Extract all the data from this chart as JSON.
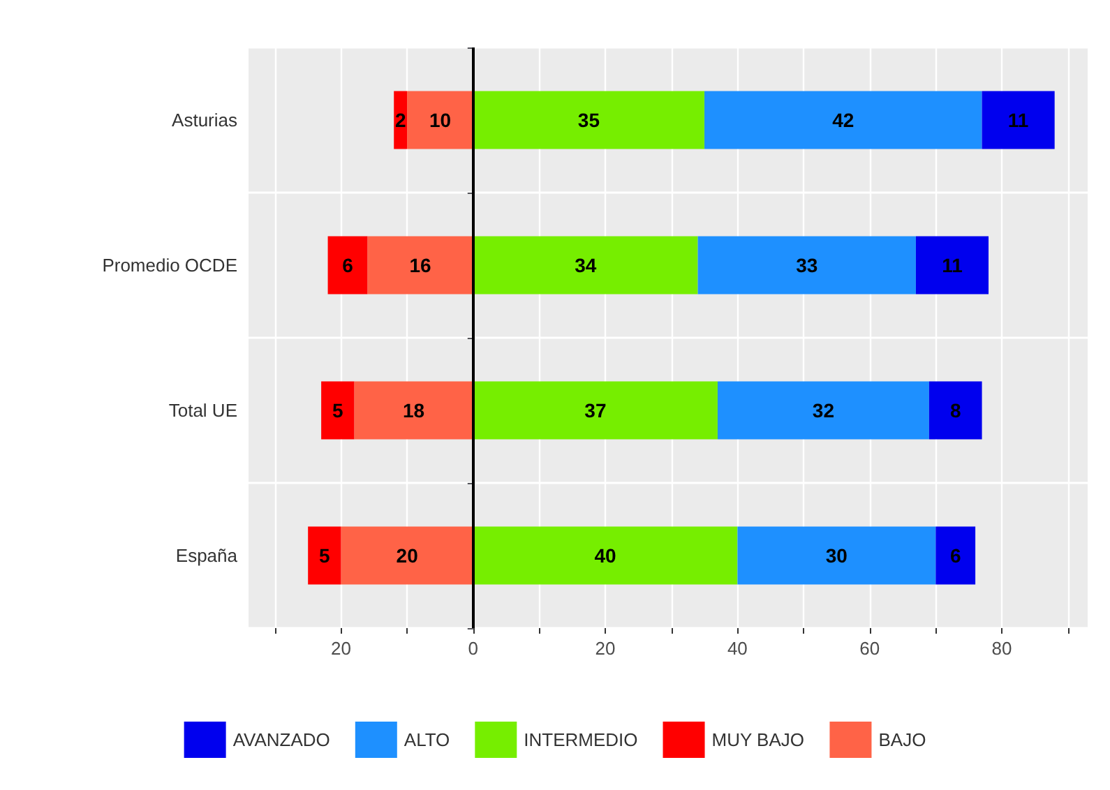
{
  "chart_data": {
    "type": "bar",
    "orientation": "horizontal",
    "categories": [
      "Asturias",
      "Promedio OCDE",
      "Total UE",
      "España"
    ],
    "series": [
      {
        "name": "BAJO",
        "color": "#ff6347",
        "values": [
          10,
          16,
          18,
          20
        ],
        "base": [
          -10,
          -16,
          -18,
          -20
        ]
      },
      {
        "name": "MUY BAJO",
        "color": "#ff0000",
        "values": [
          2,
          6,
          5,
          5
        ],
        "base": [
          -12,
          -22,
          -23,
          -25
        ]
      },
      {
        "name": "INTERMEDIO",
        "color": "#76ee00",
        "values": [
          35,
          34,
          37,
          40
        ],
        "base": [
          0,
          0,
          0,
          0
        ]
      },
      {
        "name": "ALTO",
        "color": "#1e90ff",
        "values": [
          42,
          33,
          32,
          30
        ],
        "base": [
          35,
          34,
          37,
          40
        ]
      },
      {
        "name": "AVANZADO",
        "color": "#0000ee",
        "values": [
          11,
          11,
          8,
          6
        ],
        "base": [
          77,
          67,
          69,
          70
        ]
      }
    ],
    "data_labels": true,
    "xlim": [
      -34,
      93
    ],
    "xticks": [
      {
        "value": -30,
        "label": null
      },
      {
        "value": -20,
        "label": "20"
      },
      {
        "value": -10,
        "label": null
      },
      0,
      {
        "value": 10,
        "label": null
      },
      20,
      {
        "value": 30,
        "label": null
      },
      40,
      {
        "value": 50,
        "label": null
      },
      60,
      {
        "value": 70,
        "label": null
      },
      80,
      {
        "value": 90,
        "label": null
      }
    ],
    "ref_lines": [
      {
        "axis": "x",
        "value": 0,
        "color": "#000000"
      }
    ],
    "grid": true,
    "legend": "bottom"
  }
}
